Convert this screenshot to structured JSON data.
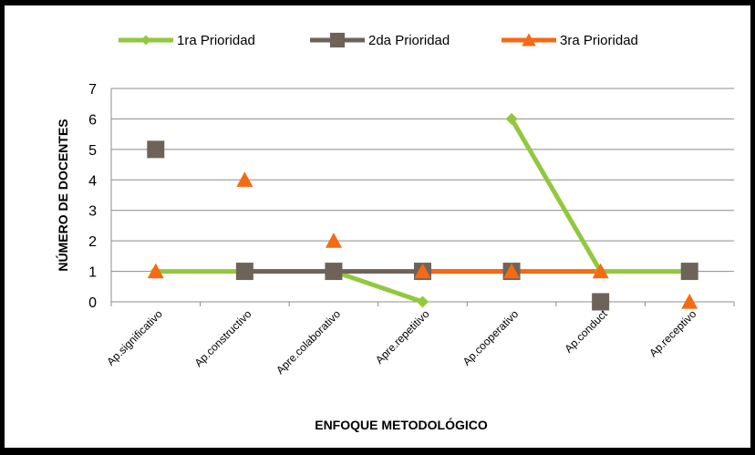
{
  "chart_data": {
    "type": "line",
    "title": "",
    "xlabel": "ENFOQUE METODOLÓGICO",
    "ylabel": "NÚMERO DE DOCENTES",
    "ylim": [
      0,
      7
    ],
    "yticks": [
      "0",
      "1",
      "2",
      "3",
      "4",
      "5",
      "6",
      "7"
    ],
    "grid": true,
    "legend": "top",
    "categories": [
      "Ap.significativo",
      "Ap.constructivo",
      "Apre.colaborativo",
      "Apre.repetitivo",
      "Ap.cooperativo",
      "Ap.conduct",
      "Ap.receptivo"
    ],
    "series": [
      {
        "name": "1ra Prioridad",
        "color": "#92C83E",
        "marker": "diamond",
        "values": [
          1,
          1,
          1,
          0,
          6,
          1,
          1
        ],
        "line_segments": [
          [
            0,
            1
          ],
          [
            1,
            2
          ],
          [
            2,
            3
          ],
          [
            4,
            5
          ],
          [
            5,
            6
          ]
        ]
      },
      {
        "name": "2da Prioridad",
        "color": "#6E6359",
        "marker": "square",
        "values": [
          5,
          1,
          1,
          1,
          1,
          0,
          1
        ],
        "line_segments": [
          [
            1,
            2
          ],
          [
            2,
            3
          ],
          [
            3,
            4
          ]
        ]
      },
      {
        "name": "3ra Prioridad",
        "color": "#F56A13",
        "marker": "triangle",
        "values": [
          1,
          4,
          2,
          1,
          1,
          1,
          0
        ],
        "line_segments": [
          [
            3,
            4
          ],
          [
            4,
            5
          ]
        ]
      }
    ]
  }
}
